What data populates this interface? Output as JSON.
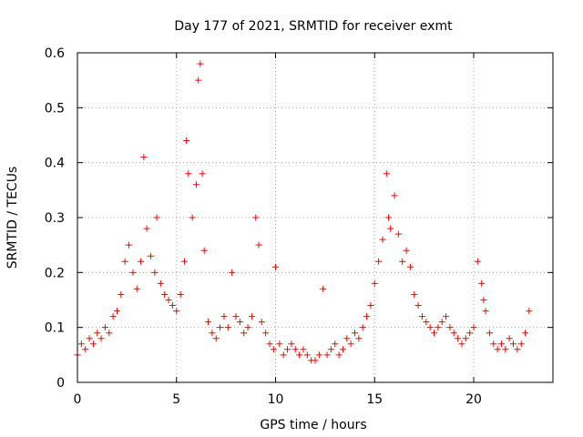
{
  "chart_data": {
    "type": "scatter",
    "title": "Day 177 of 2021, SRMTID for receiver exmt",
    "xlabel": "GPS time / hours",
    "ylabel": "SRMTID / TECUs",
    "xlim": [
      0,
      24
    ],
    "ylim": [
      0,
      0.6
    ],
    "xticks": [
      0,
      5,
      10,
      15,
      20
    ],
    "xtick_labels": [
      "0",
      "5",
      "10",
      "15",
      "20"
    ],
    "yticks": [
      0,
      0.1,
      0.2,
      0.3,
      0.4,
      0.5,
      0.6
    ],
    "ytick_labels": [
      "0",
      "0.1",
      "0.2",
      "0.3",
      "0.4",
      "0.5",
      "0.6"
    ],
    "grid": true,
    "marker": "+",
    "color": "#ff0000",
    "series": [
      {
        "name": "SRMTID",
        "x": [
          0.0,
          0.2,
          0.4,
          0.6,
          0.8,
          1.0,
          1.2,
          1.4,
          1.6,
          1.8,
          2.0,
          2.2,
          2.4,
          2.6,
          2.8,
          3.0,
          3.2,
          3.35,
          3.5,
          3.7,
          3.9,
          4.0,
          4.2,
          4.4,
          4.6,
          4.8,
          5.0,
          5.2,
          5.4,
          5.5,
          5.6,
          5.8,
          6.0,
          6.1,
          6.2,
          6.3,
          6.4,
          6.6,
          6.8,
          7.0,
          7.2,
          7.4,
          7.6,
          7.8,
          8.0,
          8.2,
          8.4,
          8.6,
          8.8,
          9.0,
          9.15,
          9.3,
          9.5,
          9.7,
          9.9,
          10.0,
          10.2,
          10.4,
          10.6,
          10.8,
          11.0,
          11.2,
          11.4,
          11.6,
          11.8,
          12.0,
          12.2,
          12.4,
          12.6,
          12.8,
          13.0,
          13.2,
          13.4,
          13.6,
          13.8,
          14.0,
          14.2,
          14.4,
          14.6,
          14.8,
          15.0,
          15.2,
          15.4,
          15.6,
          15.7,
          15.8,
          16.0,
          16.2,
          16.4,
          16.6,
          16.8,
          17.0,
          17.2,
          17.4,
          17.6,
          17.8,
          18.0,
          18.2,
          18.4,
          18.6,
          18.8,
          19.0,
          19.2,
          19.4,
          19.6,
          19.8,
          20.0,
          20.2,
          20.4,
          20.5,
          20.6,
          20.8,
          21.0,
          21.2,
          21.4,
          21.6,
          21.8,
          22.0,
          22.2,
          22.4,
          22.6,
          22.8
        ],
        "values": [
          0.05,
          0.07,
          0.06,
          0.08,
          0.07,
          0.09,
          0.08,
          0.1,
          0.09,
          0.12,
          0.13,
          0.16,
          0.22,
          0.25,
          0.2,
          0.17,
          0.22,
          0.41,
          0.28,
          0.23,
          0.2,
          0.3,
          0.18,
          0.16,
          0.15,
          0.14,
          0.13,
          0.16,
          0.22,
          0.44,
          0.38,
          0.3,
          0.36,
          0.55,
          0.58,
          0.38,
          0.24,
          0.11,
          0.09,
          0.08,
          0.1,
          0.12,
          0.1,
          0.2,
          0.12,
          0.11,
          0.09,
          0.1,
          0.12,
          0.3,
          0.25,
          0.11,
          0.09,
          0.07,
          0.06,
          0.21,
          0.07,
          0.05,
          0.06,
          0.07,
          0.06,
          0.05,
          0.06,
          0.05,
          0.04,
          0.04,
          0.05,
          0.17,
          0.05,
          0.06,
          0.07,
          0.05,
          0.06,
          0.08,
          0.07,
          0.09,
          0.08,
          0.1,
          0.12,
          0.14,
          0.18,
          0.22,
          0.26,
          0.38,
          0.3,
          0.28,
          0.34,
          0.27,
          0.22,
          0.24,
          0.21,
          0.16,
          0.14,
          0.12,
          0.11,
          0.1,
          0.09,
          0.1,
          0.11,
          0.12,
          0.1,
          0.09,
          0.08,
          0.07,
          0.08,
          0.09,
          0.1,
          0.22,
          0.18,
          0.15,
          0.13,
          0.09,
          0.07,
          0.06,
          0.07,
          0.06,
          0.08,
          0.07,
          0.06,
          0.07,
          0.09,
          0.13
        ]
      }
    ]
  }
}
